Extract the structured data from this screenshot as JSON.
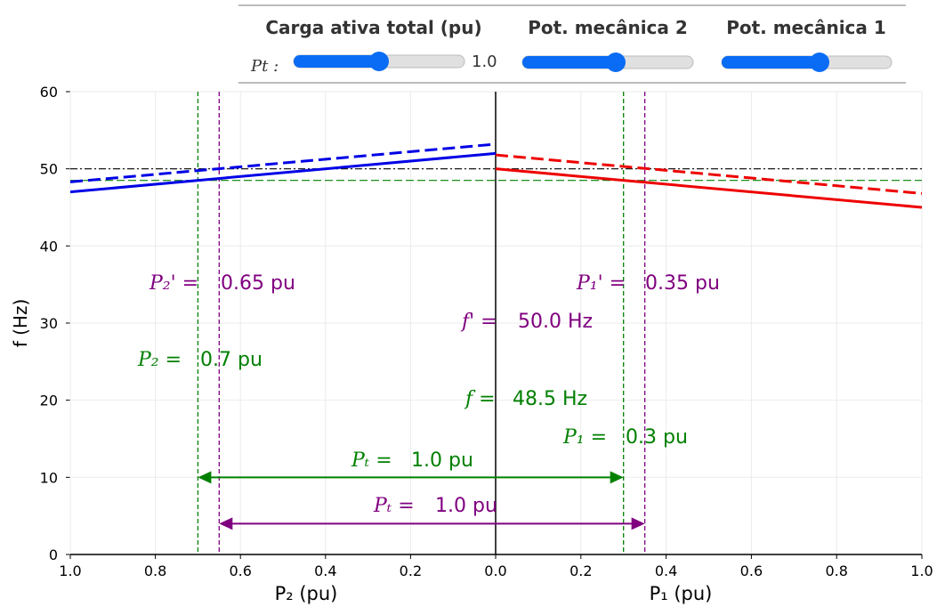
{
  "widgets": {
    "controls": [
      {
        "title": "Carga ativa total (pu)",
        "label": "Pt :",
        "readout": "1.0"
      },
      {
        "title": "Pot. mecânica 2"
      },
      {
        "title": "Pot. mecânica 1"
      }
    ]
  },
  "chart_data": {
    "type": "line",
    "ylabel": "f (Hz)",
    "ylim": [
      0,
      60
    ],
    "yticks": [
      0,
      10,
      20,
      30,
      40,
      50,
      60
    ],
    "grid": true,
    "x_axes": {
      "left": {
        "label": "P₂ (pu)",
        "xlim": [
          1.0,
          0.0
        ],
        "xticks": [
          {
            "value": 1.0,
            "label": "1.0"
          },
          {
            "value": 0.8,
            "label": "0.8"
          },
          {
            "value": 0.6,
            "label": "0.6"
          },
          {
            "value": 0.4,
            "label": "0.4"
          },
          {
            "value": 0.2,
            "label": "0.2"
          },
          {
            "value": 0.0,
            "label": "0.0"
          }
        ]
      },
      "right": {
        "label": "P₁ (pu)",
        "xlim": [
          0.0,
          1.0
        ],
        "xticks": [
          {
            "value": 0.2,
            "label": "0.2"
          },
          {
            "value": 0.4,
            "label": "0.4"
          },
          {
            "value": 0.6,
            "label": "0.6"
          },
          {
            "value": 0.8,
            "label": "0.8"
          },
          {
            "value": 1.0,
            "label": "1.0"
          }
        ]
      }
    },
    "series": [
      {
        "axis": "left",
        "color": "#0000e6",
        "style": "solid",
        "x": [
          1.0,
          0.0
        ],
        "values": [
          47,
          52
        ]
      },
      {
        "axis": "left",
        "color": "#0000e6",
        "style": "dashed",
        "x": [
          1.0,
          0.0
        ],
        "values": [
          48.3,
          53.2
        ]
      },
      {
        "axis": "right",
        "color": "#ee0000",
        "style": "solid",
        "x": [
          0.0,
          1.0
        ],
        "values": [
          50,
          45
        ]
      },
      {
        "axis": "right",
        "color": "#ee0000",
        "style": "dashed",
        "x": [
          0.0,
          1.0
        ],
        "values": [
          51.8,
          46.8
        ]
      }
    ],
    "hlines": [
      {
        "y": 50,
        "color": "#000000",
        "style": "dashdot"
      },
      {
        "y": 48.5,
        "color": "#008000",
        "style": "dashed"
      }
    ],
    "vlines": [
      {
        "axis": "left",
        "x": 0.7,
        "color": "#008000"
      },
      {
        "axis": "left",
        "x": 0.65,
        "color": "#800080"
      },
      {
        "axis": "right",
        "x": 0.3,
        "color": "#008000"
      },
      {
        "axis": "right",
        "x": 0.35,
        "color": "#800080"
      }
    ],
    "arrows": [
      {
        "y": 10,
        "from": 0.7,
        "to": 0.3,
        "color": "#008000"
      },
      {
        "y": 4,
        "from": 0.65,
        "to": 0.35,
        "color": "#800080"
      }
    ],
    "annotations": [
      {
        "symbol": "P₂' =",
        "text": "0.65 pu",
        "color": "#800080"
      },
      {
        "symbol": "P₂ =",
        "text": "0.7 pu",
        "color": "#008000"
      },
      {
        "symbol": "P₁' =",
        "text": "0.35 pu",
        "color": "#800080"
      },
      {
        "symbol": "f' =",
        "text": "50.0 Hz",
        "color": "#800080"
      },
      {
        "symbol": "f =",
        "text": "48.5 Hz",
        "color": "#008000"
      },
      {
        "symbol": "P₁ =",
        "text": "0.3 pu",
        "color": "#008000"
      },
      {
        "symbol": "Pₜ =",
        "text": "1.0 pu",
        "color": "#008000"
      },
      {
        "symbol": "Pₜ =",
        "text": "1.0 pu",
        "color": "#800080"
      }
    ]
  }
}
